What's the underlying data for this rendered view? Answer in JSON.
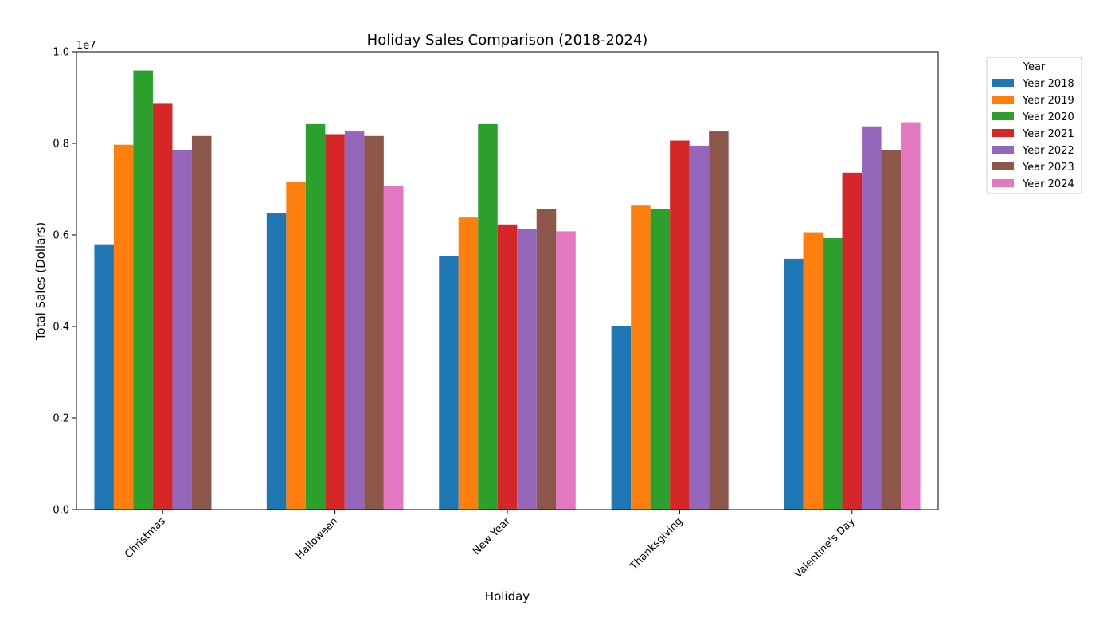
{
  "chart_data": {
    "type": "bar",
    "title": "Holiday Sales Comparison (2018-2024)",
    "xlabel": "Holiday",
    "ylabel": "Total Sales (Dollars)",
    "y_offset_label": "1e7",
    "ylim": [
      0,
      10000000
    ],
    "ytick_labels": [
      "0.0",
      "0.2",
      "0.4",
      "0.6",
      "0.8",
      "1.0"
    ],
    "categories": [
      "Christmas",
      "Halloween",
      "New Year",
      "Thanksgiving",
      "Valentine's Day"
    ],
    "legend": {
      "title": "Year",
      "placement": "outside-right-top"
    },
    "grid": false,
    "series": [
      {
        "name": "Year 2018",
        "color": "#1f77b4",
        "values": [
          5780000,
          6480000,
          5540000,
          4000000,
          5480000
        ]
      },
      {
        "name": "Year 2019",
        "color": "#ff7f0e",
        "values": [
          7970000,
          7160000,
          6380000,
          6640000,
          6060000
        ]
      },
      {
        "name": "Year 2020",
        "color": "#2ca02c",
        "values": [
          9590000,
          8420000,
          8420000,
          6560000,
          5930000
        ]
      },
      {
        "name": "Year 2021",
        "color": "#d62728",
        "values": [
          8880000,
          8200000,
          6230000,
          8060000,
          7360000
        ]
      },
      {
        "name": "Year 2022",
        "color": "#9467bd",
        "values": [
          7860000,
          8260000,
          6130000,
          7950000,
          8370000
        ]
      },
      {
        "name": "Year 2023",
        "color": "#8c564b",
        "values": [
          8160000,
          8160000,
          6560000,
          8260000,
          7850000
        ]
      },
      {
        "name": "Year 2024",
        "color": "#e377c2",
        "values": [
          null,
          7070000,
          6080000,
          null,
          8460000
        ]
      }
    ]
  }
}
